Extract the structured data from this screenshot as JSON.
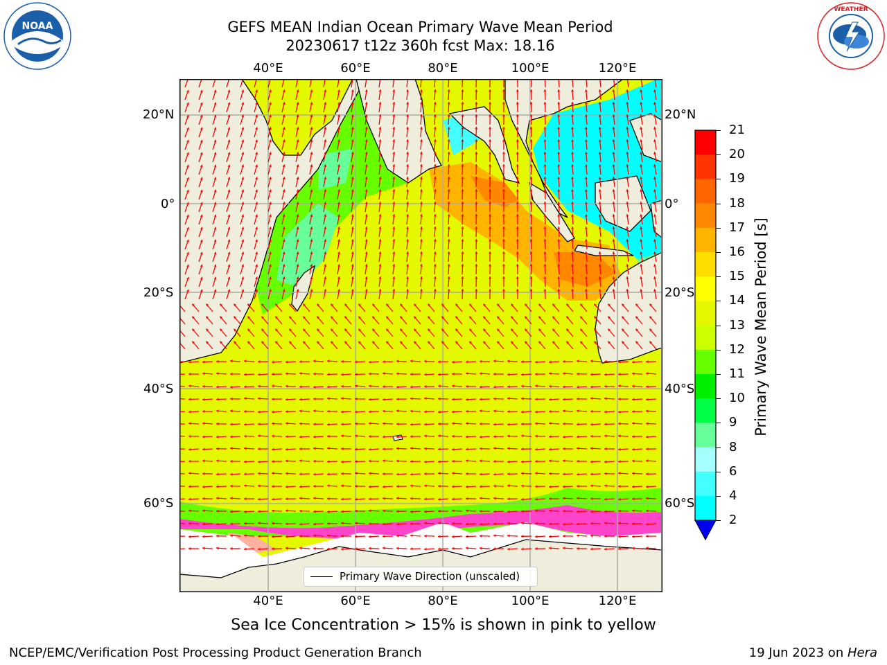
{
  "header": {
    "title_line1": "GEFS MEAN Indian Ocean Primary Wave Mean Period",
    "title_line2": "20230617 t12z 360h fcst   Max: 18.16"
  },
  "logos": {
    "left": {
      "text": "NOAA",
      "ring_text": "NATIONAL OCEANIC AND ATMOSPHERIC ADMINISTRATION · U.S. DEPARTMENT OF COMMERCE",
      "colors": [
        "#1a5fa8",
        "#ffffff"
      ]
    },
    "right": {
      "ring_text": "NATIONAL WEATHER SERVICE",
      "colors": [
        "#d61f26",
        "#1a5fa8"
      ]
    }
  },
  "map": {
    "lon_labels": [
      "40°E",
      "60°E",
      "80°E",
      "100°E",
      "120°E"
    ],
    "lat_labels": [
      "20°N",
      "0°",
      "20°S",
      "40°S",
      "60°S"
    ],
    "ocean_color": "#e4f800",
    "land_color": "#efeedd"
  },
  "colorbar": {
    "label": "Primary Wave Mean Period [s]",
    "ticks": [
      "21",
      "20",
      "19",
      "18",
      "17",
      "16",
      "15",
      "14",
      "13",
      "12",
      "11",
      "10",
      "9",
      "8",
      "6",
      "4",
      "2"
    ],
    "colors": [
      "#ff0000",
      "#ff3300",
      "#ff6600",
      "#ff8800",
      "#ffb400",
      "#ffdd00",
      "#ffff00",
      "#e4f800",
      "#ccff00",
      "#66ff00",
      "#00ee00",
      "#00ff44",
      "#66ff99",
      "#a6ffff",
      "#44ffff",
      "#00ffff",
      "#0088ff",
      "#0000ee"
    ]
  },
  "legend": {
    "label": "Primary Wave Direction (unscaled)"
  },
  "note": "Sea Ice Concentration > 15% is shown in pink to yellow",
  "footer": {
    "left": "NCEP/EMC/Verification Post Processing Product Generation Branch",
    "right_prefix": "19 Jun 2023 on ",
    "right_machine": "Hera"
  }
}
